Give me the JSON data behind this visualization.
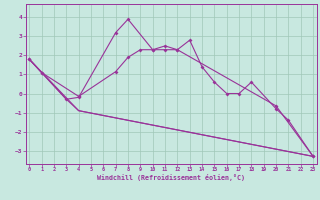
{
  "xlabel": "Windchill (Refroidissement éolien,°C)",
  "bg_color": "#c8e8e0",
  "line_color": "#993399",
  "grid_color": "#a0c8b8",
  "spine_color": "#993399",
  "xlim": [
    -0.3,
    23.3
  ],
  "ylim": [
    -3.7,
    4.7
  ],
  "xticks": [
    0,
    1,
    2,
    3,
    4,
    5,
    6,
    7,
    8,
    9,
    10,
    11,
    12,
    13,
    14,
    15,
    16,
    17,
    18,
    19,
    20,
    21,
    22,
    23
  ],
  "yticks": [
    -3,
    -2,
    -1,
    0,
    1,
    2,
    3,
    4
  ],
  "curve1_x": [
    0,
    1,
    3,
    4,
    7,
    8,
    10,
    11,
    12,
    13,
    14,
    15,
    16,
    17,
    18,
    20,
    21,
    23
  ],
  "curve1_y": [
    1.8,
    1.1,
    -0.3,
    -0.2,
    3.2,
    3.9,
    2.3,
    2.5,
    2.3,
    2.8,
    1.4,
    0.6,
    0.0,
    0.0,
    0.6,
    -0.8,
    -1.4,
    -3.3
  ],
  "curve2_x": [
    0,
    1,
    4,
    7,
    8,
    9,
    10,
    11,
    12,
    20,
    23
  ],
  "curve2_y": [
    1.8,
    1.1,
    -0.15,
    1.15,
    1.9,
    2.3,
    2.3,
    2.3,
    2.3,
    -0.65,
    -3.3
  ],
  "curve3_x": [
    0,
    3,
    4,
    23
  ],
  "curve3_y": [
    1.8,
    -0.3,
    -0.9,
    -3.3
  ],
  "curve4_x": [
    0,
    4,
    23
  ],
  "curve4_y": [
    1.8,
    -0.9,
    -3.3
  ]
}
